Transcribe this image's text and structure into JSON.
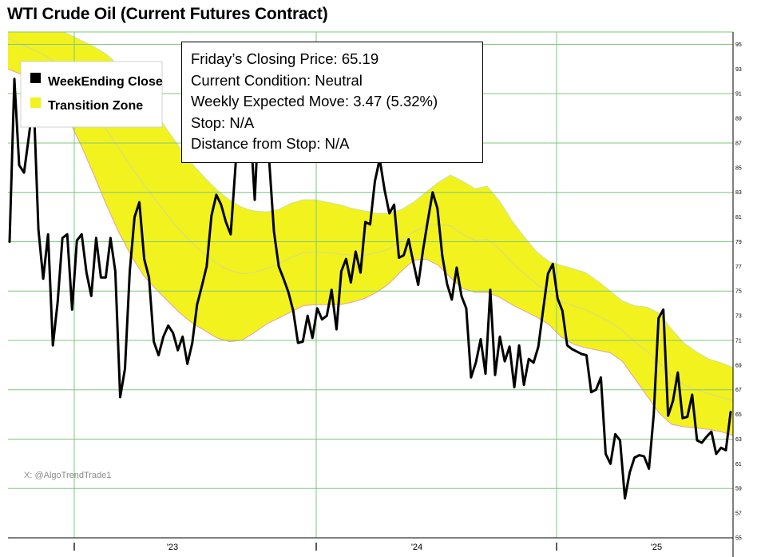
{
  "chart_data": {
    "type": "line",
    "title": "WTI Crude Oil (Current Futures Contract)",
    "xlabel": "",
    "ylabel": "",
    "ylim": [
      55,
      96
    ],
    "y_ticks": [
      55,
      57,
      59,
      61,
      63,
      65,
      67,
      69,
      71,
      73,
      75,
      77,
      79,
      81,
      83,
      85,
      87,
      89,
      91,
      93,
      95
    ],
    "x_tick_labels": [
      "'23",
      "'24",
      "'25"
    ],
    "grid": "horizontal",
    "legend": {
      "placement": "top-left",
      "entries": [
        {
          "label": "WeekEnding Close",
          "color": "#000000"
        },
        {
          "label": "Transition Zone",
          "color": "#f2f21e"
        }
      ]
    },
    "info_box": [
      "Friday’s Closing Price: 65.19",
      "Current Condition: Neutral",
      "Weekly Expected Move: 3.47 (5.32%)",
      "Stop: N/A",
      "Distance from Stop: N/A"
    ],
    "watermark": "X: @AlgoTrendTrade1",
    "colors": {
      "line": "#000000",
      "band_fill": "#f2f21e",
      "band_edge": "#e8a0a0",
      "grid": "#7ec87e"
    },
    "series": [
      {
        "name": "WeekEnding Close",
        "values": [
          79.0,
          92.2,
          85.2,
          84.6,
          87.5,
          90.6,
          80.0,
          76.0,
          79.6,
          70.6,
          74.1,
          79.3,
          79.6,
          73.5,
          79.1,
          79.6,
          76.5,
          74.6,
          79.3,
          76.1,
          76.1,
          79.3,
          76.6,
          66.4,
          68.7,
          76.6,
          81.0,
          82.2,
          77.6,
          76.1,
          70.9,
          69.8,
          71.3,
          72.2,
          71.6,
          70.2,
          71.3,
          69.1,
          70.8,
          73.9,
          75.4,
          77.0,
          81.1,
          82.8,
          82.0,
          80.6,
          79.6,
          85.1,
          90.8,
          91.8,
          88.9,
          82.4,
          90.7,
          89.6,
          85.6,
          79.8,
          77.0,
          76.0,
          74.9,
          73.4,
          70.8,
          70.9,
          73.0,
          71.2,
          73.6,
          72.7,
          73.0,
          75.1,
          71.9,
          76.6,
          77.6,
          75.7,
          78.2,
          76.5,
          80.6,
          80.4,
          83.9,
          85.7,
          83.2,
          81.3,
          82.0,
          77.7,
          77.9,
          79.2,
          77.3,
          75.5,
          78.3,
          80.7,
          83.0,
          81.7,
          77.9,
          75.6,
          74.3,
          76.9,
          74.6,
          73.6,
          68.0,
          69.2,
          71.1,
          68.3,
          75.1,
          68.2,
          71.3,
          69.3,
          70.5,
          67.2,
          70.6,
          67.4,
          69.5,
          69.2,
          70.5,
          73.5,
          76.4,
          77.2,
          74.4,
          73.4,
          70.6,
          70.3,
          70.1,
          69.9,
          69.8,
          66.8,
          67.0,
          68.0,
          61.8,
          61.0,
          63.4,
          62.9,
          58.2,
          60.3,
          61.5,
          61.7,
          61.6,
          60.6,
          65.0,
          72.8,
          73.5,
          64.9,
          66.1,
          68.4,
          64.7,
          64.8,
          66.6,
          62.9,
          62.7,
          63.2,
          63.6,
          61.8,
          62.3,
          62.1,
          65.2
        ]
      },
      {
        "name": "Transition Zone (upper)",
        "values": [
          98,
          97.5,
          97,
          96.6,
          96.2,
          95.8,
          95.3,
          94.8,
          94.2,
          93.3,
          92.3,
          91.0,
          89.5,
          88.0,
          86.6,
          85.3,
          84.2,
          83.2,
          82.4,
          81.8,
          81.5,
          81.4,
          81.6,
          82.1,
          82.4,
          82.4,
          82.2,
          82.0,
          81.7,
          81.5,
          81.3,
          81.3,
          81.6,
          82.2,
          83.0,
          83.8,
          84.4,
          83.9,
          83.3,
          83.5,
          82.3,
          80.7,
          79.4,
          78.2,
          77.4,
          77.1,
          76.8,
          76.5,
          75.8,
          75.0,
          74.2,
          73.8,
          73.7,
          73.2,
          71.9,
          70.8,
          70.1,
          69.5,
          69.2,
          68.8
        ]
      },
      {
        "name": "Transition Zone (lower)",
        "values": [
          93,
          92.6,
          92.2,
          91.6,
          90.6,
          88.8,
          86.7,
          84.4,
          82.0,
          79.8,
          77.9,
          76.3,
          75.2,
          74.2,
          73.2,
          72.4,
          71.8,
          71.2,
          70.9,
          71.0,
          71.6,
          72.3,
          72.8,
          73.3,
          73.8,
          73.9,
          73.9,
          73.9,
          74.1,
          74.4,
          74.9,
          75.6,
          76.6,
          77.5,
          77.6,
          77.1,
          76.1,
          75.2,
          74.9,
          74.9,
          74.5,
          73.9,
          73.4,
          72.9,
          72.3,
          71.3,
          70.7,
          70.4,
          70.2,
          70.0,
          69.3,
          67.9,
          66.5,
          65.1,
          64.2,
          64.0,
          63.9,
          63.8,
          63.6,
          63.3
        ]
      },
      {
        "name": "Transition Zone (mid)",
        "values": [
          95.5,
          95.0,
          94.6,
          94.1,
          93.4,
          92.3,
          91.0,
          89.6,
          88.1,
          86.6,
          85.1,
          83.7,
          82.4,
          81.1,
          79.9,
          78.9,
          78.0,
          77.2,
          76.7,
          76.4,
          76.5,
          76.8,
          77.2,
          77.7,
          78.1,
          78.2,
          78.1,
          78.0,
          77.9,
          77.9,
          78.1,
          78.4,
          79.1,
          79.8,
          80.3,
          80.4,
          80.3,
          79.6,
          79.1,
          79.2,
          78.4,
          77.3,
          76.4,
          75.6,
          74.9,
          74.2,
          73.8,
          73.5,
          73.0,
          72.5,
          71.8,
          70.9,
          70.1,
          69.2,
          68.1,
          67.4,
          67.0,
          66.7,
          66.4,
          66.1
        ]
      }
    ]
  }
}
